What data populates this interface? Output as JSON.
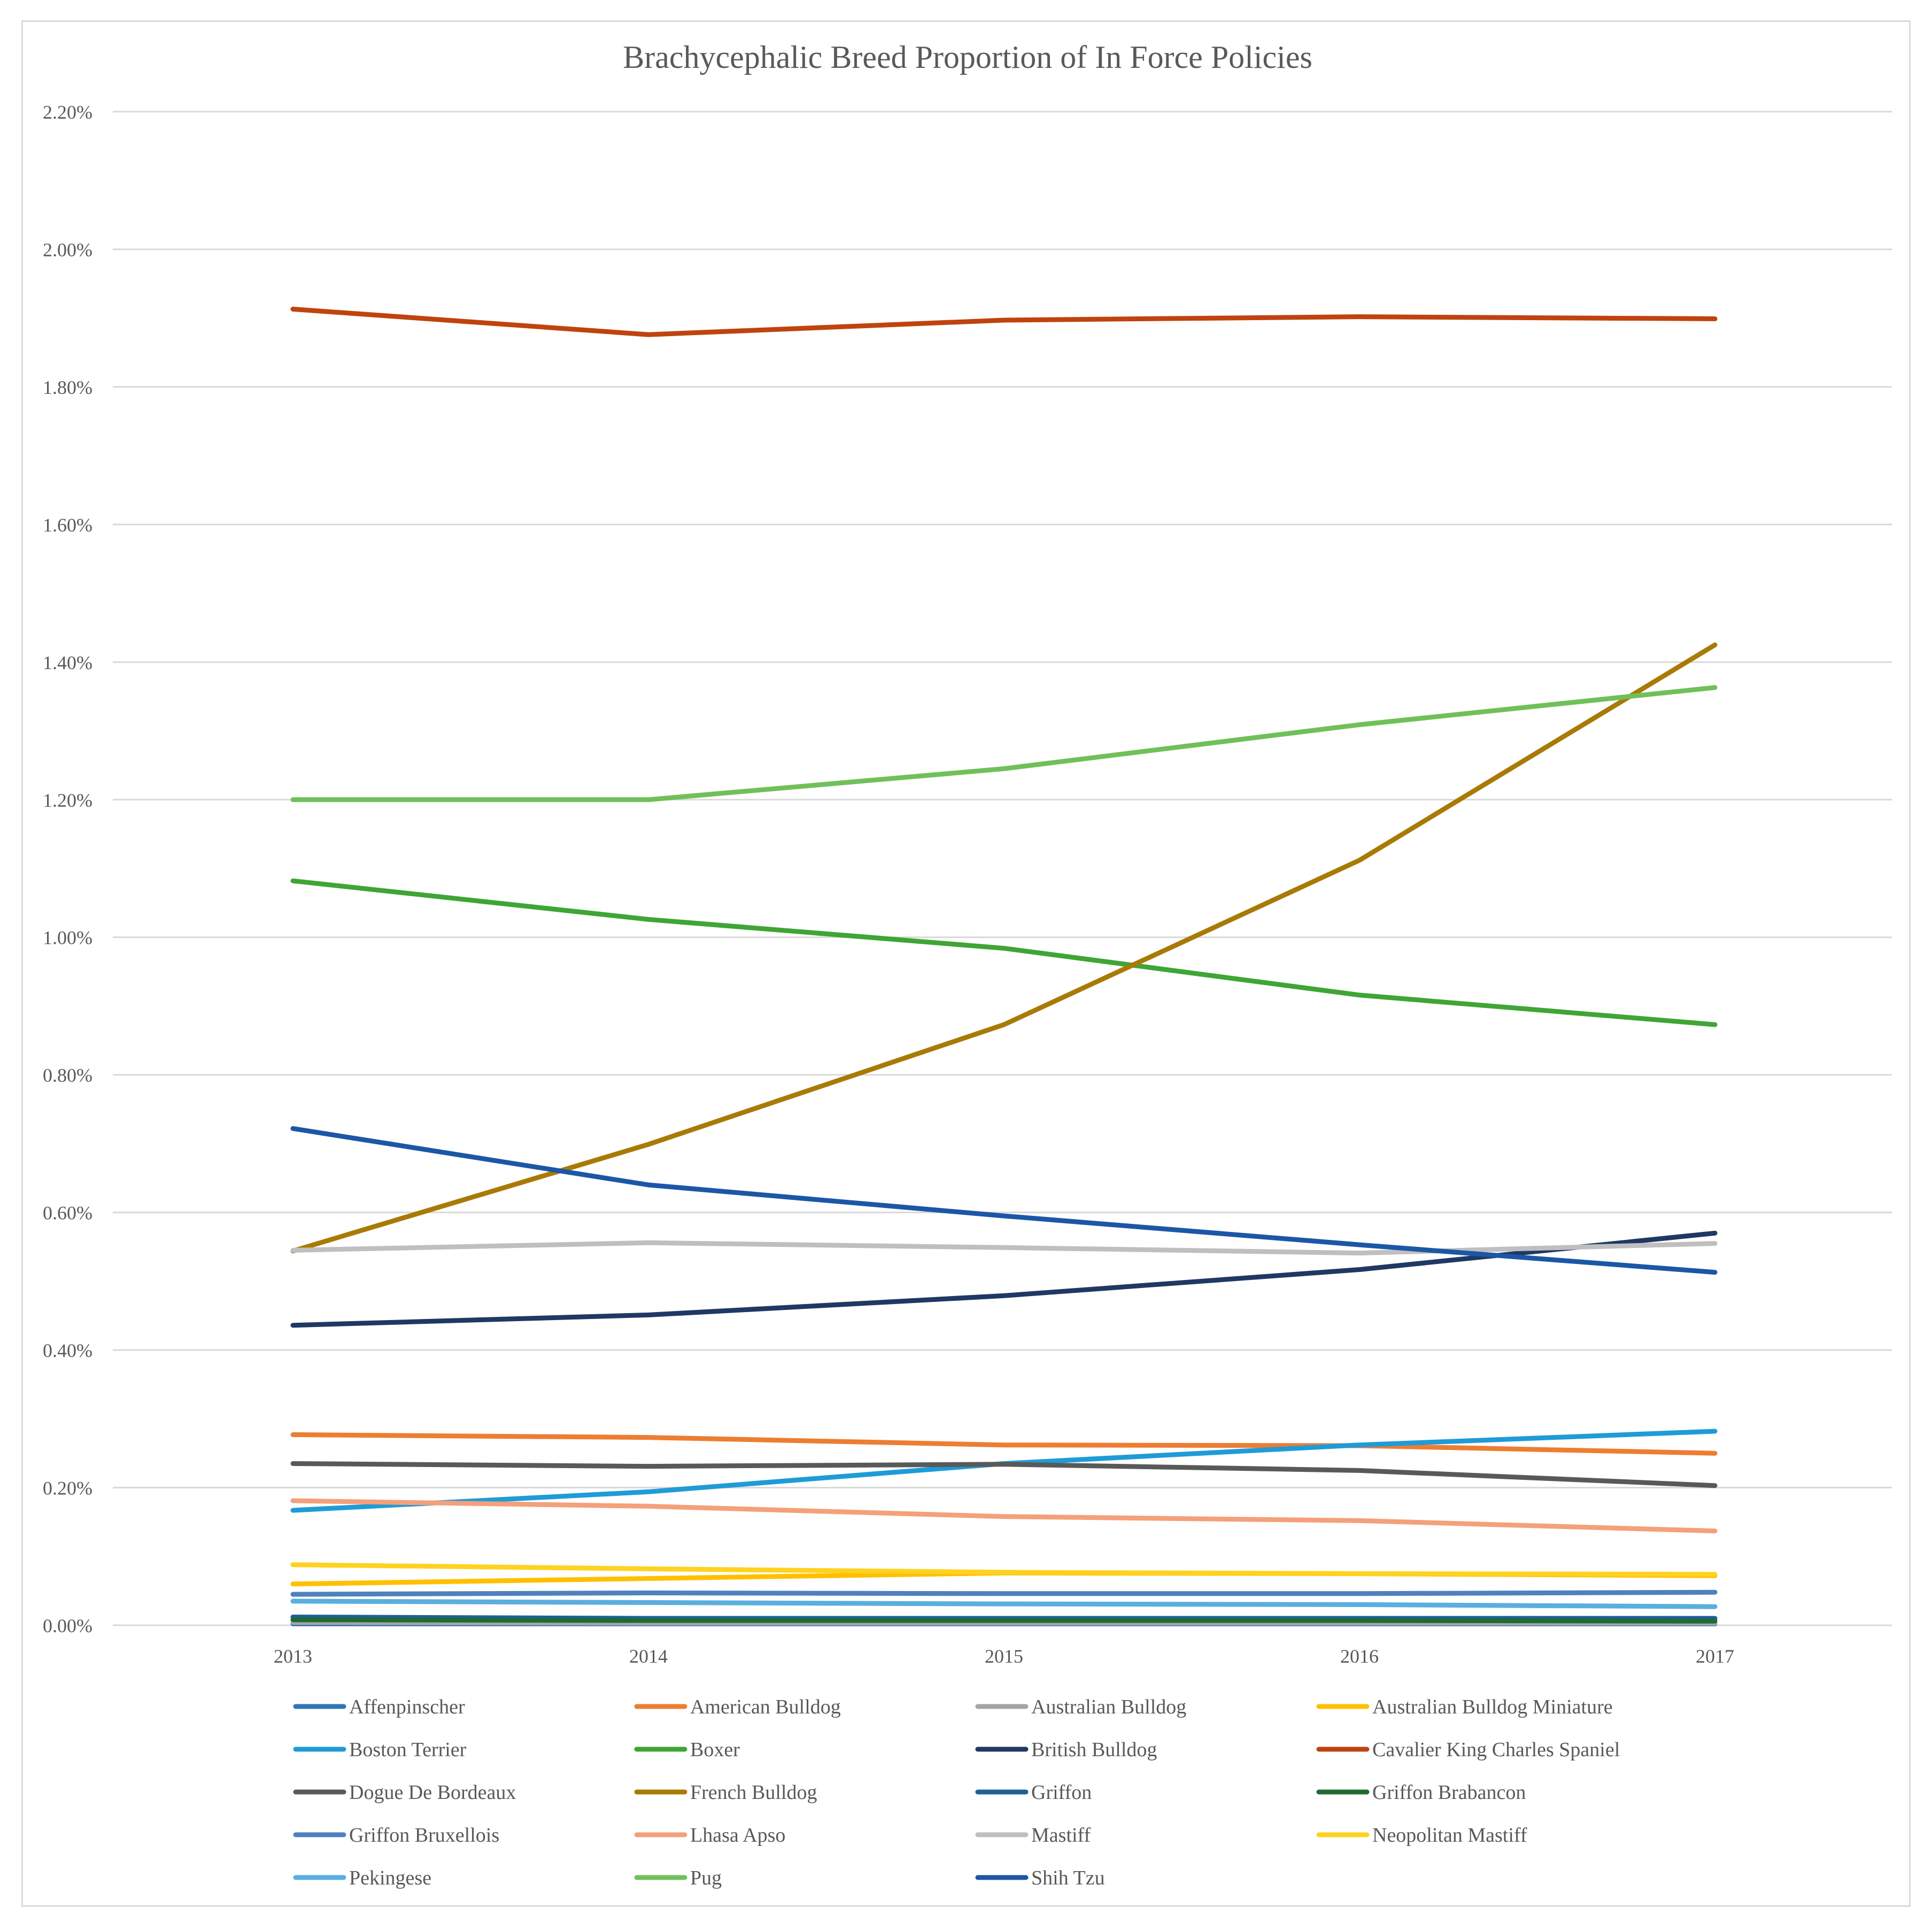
{
  "chart_data": {
    "type": "line",
    "title": "Brachycephalic Breed Proportion of In Force Policies",
    "xlabel": "",
    "ylabel": "",
    "categories": [
      "2013",
      "2014",
      "2015",
      "2016",
      "2017"
    ],
    "ylim": [
      0,
      0.022
    ],
    "yticks": [
      0,
      0.002,
      0.004,
      0.006,
      0.008,
      0.01,
      0.012,
      0.014,
      0.016,
      0.018,
      0.02,
      0.022
    ],
    "ytick_labels": [
      "0.00%",
      "0.20%",
      "0.40%",
      "0.60%",
      "0.80%",
      "1.00%",
      "1.20%",
      "1.40%",
      "1.60%",
      "1.80%",
      "2.00%",
      "2.20%"
    ],
    "grid": true,
    "legend_position": "bottom",
    "series": [
      {
        "name": "Affenpinscher",
        "color": "#2e75b6",
        "values": [
          2e-05,
          2e-05,
          2e-05,
          2e-05,
          2e-05
        ]
      },
      {
        "name": "American Bulldog",
        "color": "#ed7d31",
        "values": [
          0.00277,
          0.00273,
          0.00262,
          0.00261,
          0.0025
        ]
      },
      {
        "name": "Australian Bulldog",
        "color": "#a5a5a5",
        "values": [
          4e-05,
          3e-05,
          3e-05,
          3e-05,
          3e-05
        ]
      },
      {
        "name": "Australian Bulldog Miniature",
        "color": "#ffc000",
        "values": [
          0.0006,
          0.00068,
          0.00076,
          0.00075,
          0.00072
        ]
      },
      {
        "name": "Boston Terrier",
        "color": "#1f9bd8",
        "values": [
          0.00167,
          0.00194,
          0.00235,
          0.00262,
          0.00282
        ]
      },
      {
        "name": "Boxer",
        "color": "#3fa535",
        "values": [
          0.01082,
          0.01026,
          0.00984,
          0.00916,
          0.00873
        ]
      },
      {
        "name": "British Bulldog",
        "color": "#1f3864",
        "values": [
          0.00436,
          0.00451,
          0.00479,
          0.00517,
          0.0057
        ]
      },
      {
        "name": "Cavalier King Charles Spaniel",
        "color": "#c0430f",
        "values": [
          0.01913,
          0.01876,
          0.01897,
          0.01902,
          0.01899
        ]
      },
      {
        "name": "Dogue De Bordeaux",
        "color": "#595959",
        "values": [
          0.00235,
          0.00231,
          0.00234,
          0.00225,
          0.00203
        ]
      },
      {
        "name": "French Bulldog",
        "color": "#a87a06",
        "values": [
          0.00544,
          0.00699,
          0.00873,
          0.01112,
          0.01425
        ]
      },
      {
        "name": "Griffon",
        "color": "#1f5f9c",
        "values": [
          0.00012,
          0.0001,
          0.0001,
          0.0001,
          0.0001
        ]
      },
      {
        "name": "Griffon Brabancon",
        "color": "#1e6b33",
        "values": [
          8e-05,
          7e-05,
          7e-05,
          7e-05,
          6e-05
        ]
      },
      {
        "name": "Griffon Bruxellois",
        "color": "#4f81bd",
        "values": [
          0.00045,
          0.00047,
          0.00046,
          0.00046,
          0.00048
        ]
      },
      {
        "name": "Lhasa Apso",
        "color": "#f4a07a",
        "values": [
          0.00181,
          0.00173,
          0.00158,
          0.00152,
          0.00137
        ]
      },
      {
        "name": "Mastiff",
        "color": "#bfbfbf",
        "values": [
          0.00545,
          0.00556,
          0.00549,
          0.00541,
          0.00555
        ]
      },
      {
        "name": "Neopolitan Mastiff",
        "color": "#ffd21f",
        "values": [
          0.00088,
          0.00082,
          0.00077,
          0.00075,
          0.00074
        ]
      },
      {
        "name": "Pekingese",
        "color": "#5aaee0",
        "values": [
          0.00035,
          0.00033,
          0.00031,
          0.0003,
          0.00027
        ]
      },
      {
        "name": "Pug",
        "color": "#70c05a",
        "values": [
          0.012,
          0.012,
          0.01245,
          0.01309,
          0.01363
        ]
      },
      {
        "name": "Shih Tzu",
        "color": "#1b57a6",
        "values": [
          0.00722,
          0.0064,
          0.00595,
          0.00553,
          0.00513
        ]
      }
    ]
  }
}
